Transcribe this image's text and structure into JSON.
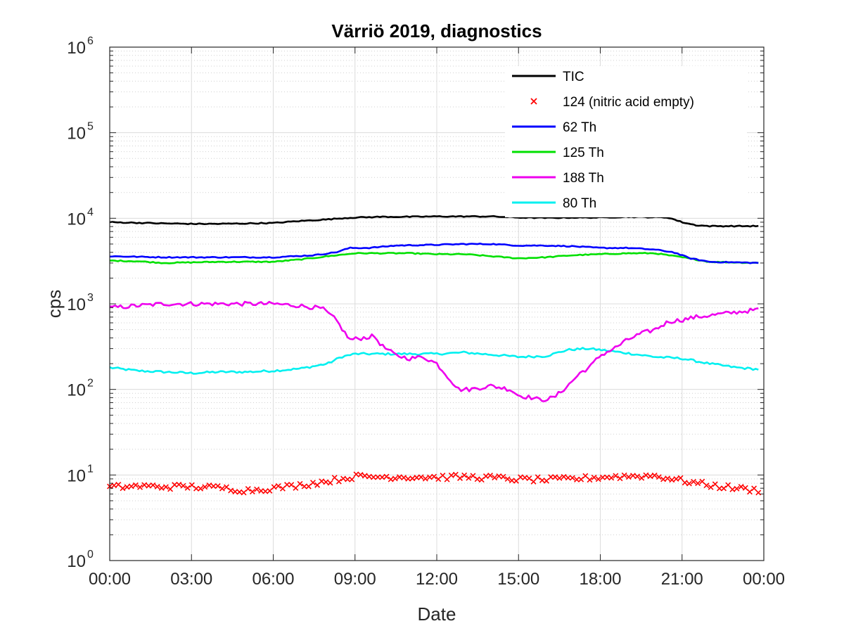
{
  "chart_data": {
    "type": "line",
    "title": "Värriö 2019, diagnostics",
    "xlabel": "Date",
    "ylabel": "cps",
    "yscale": "log",
    "ylim": [
      1,
      1000000
    ],
    "xlim_hours": [
      0,
      24
    ],
    "x_tick_labels": [
      "00:00",
      "03:00",
      "06:00",
      "09:00",
      "12:00",
      "15:00",
      "18:00",
      "21:00",
      "00:00"
    ],
    "y_tick_exponents": [
      "0",
      "1",
      "2",
      "3",
      "4",
      "5",
      "6"
    ],
    "y_tick_base": "10",
    "grid": true,
    "minor_grid": true,
    "legend_position": "top-right",
    "series": [
      {
        "name": "TIC",
        "color": "#000000",
        "style": "line",
        "points": [
          [
            0,
            9000
          ],
          [
            2,
            8700
          ],
          [
            3,
            8600
          ],
          [
            4,
            8600
          ],
          [
            6,
            8800
          ],
          [
            7,
            9300
          ],
          [
            8,
            9700
          ],
          [
            8.5,
            10000
          ],
          [
            9,
            10200
          ],
          [
            10,
            10400
          ],
          [
            11,
            10400
          ],
          [
            12,
            10500
          ],
          [
            13,
            10500
          ],
          [
            14,
            10500
          ],
          [
            15,
            10200
          ],
          [
            16,
            10100
          ],
          [
            17,
            10200
          ],
          [
            18,
            10200
          ],
          [
            19,
            10400
          ],
          [
            20,
            10300
          ],
          [
            20.5,
            10200
          ],
          [
            21,
            9000
          ],
          [
            21.5,
            8300
          ],
          [
            22,
            8100
          ],
          [
            24,
            8100
          ]
        ]
      },
      {
        "name": "124 (nitric acid empty)",
        "color": "#ff0000",
        "style": "marker-x",
        "points": [
          [
            0,
            7.2
          ],
          [
            1,
            7.4
          ],
          [
            2,
            7.3
          ],
          [
            3,
            7.3
          ],
          [
            4,
            7.1
          ],
          [
            5,
            6.6
          ],
          [
            6,
            7.0
          ],
          [
            7,
            7.6
          ],
          [
            8,
            8.5
          ],
          [
            9,
            9.6
          ],
          [
            10,
            9.5
          ],
          [
            11,
            9.5
          ],
          [
            12,
            9.4
          ],
          [
            13,
            9.5
          ],
          [
            14,
            9.3
          ],
          [
            15,
            8.9
          ],
          [
            16,
            8.8
          ],
          [
            17,
            9.0
          ],
          [
            18,
            9.4
          ],
          [
            19,
            9.7
          ],
          [
            20,
            9.8
          ],
          [
            21,
            8.6
          ],
          [
            22,
            7.6
          ],
          [
            23,
            7.0
          ],
          [
            24,
            6.5
          ]
        ]
      },
      {
        "name": "62 Th",
        "color": "#0000ff",
        "style": "line",
        "points": [
          [
            0,
            3600
          ],
          [
            2,
            3500
          ],
          [
            4,
            3500
          ],
          [
            6,
            3500
          ],
          [
            7.5,
            3700
          ],
          [
            8.3,
            4000
          ],
          [
            8.8,
            4500
          ],
          [
            9.5,
            4500
          ],
          [
            10.5,
            4800
          ],
          [
            12,
            4900
          ],
          [
            13,
            5000
          ],
          [
            14,
            5000
          ],
          [
            15,
            4800
          ],
          [
            16,
            4800
          ],
          [
            17,
            4700
          ],
          [
            18,
            4500
          ],
          [
            19,
            4500
          ],
          [
            20,
            4300
          ],
          [
            20.7,
            4000
          ],
          [
            21.3,
            3400
          ],
          [
            22,
            3100
          ],
          [
            24,
            3000
          ]
        ]
      },
      {
        "name": "125 Th",
        "color": "#00e000",
        "style": "line",
        "points": [
          [
            0,
            3200
          ],
          [
            1,
            3150
          ],
          [
            2,
            3000
          ],
          [
            3,
            3050
          ],
          [
            4,
            3100
          ],
          [
            6,
            3100
          ],
          [
            7,
            3300
          ],
          [
            8,
            3600
          ],
          [
            9,
            3900
          ],
          [
            10,
            3900
          ],
          [
            11,
            3900
          ],
          [
            12,
            3800
          ],
          [
            13,
            3800
          ],
          [
            14,
            3600
          ],
          [
            15,
            3400
          ],
          [
            16,
            3500
          ],
          [
            17,
            3700
          ],
          [
            18,
            3800
          ],
          [
            19,
            3900
          ],
          [
            20,
            3900
          ],
          [
            21,
            3500
          ],
          [
            22,
            3100
          ],
          [
            24,
            3000
          ]
        ]
      },
      {
        "name": "188 Th",
        "color": "#ee00ee",
        "style": "line",
        "points": [
          [
            0,
            900
          ],
          [
            1,
            950
          ],
          [
            2,
            1000
          ],
          [
            4,
            1000
          ],
          [
            6,
            1000
          ],
          [
            7,
            950
          ],
          [
            7.8,
            880
          ],
          [
            8.3,
            650
          ],
          [
            8.8,
            380
          ],
          [
            9.3,
            400
          ],
          [
            9.7,
            420
          ],
          [
            10,
            320
          ],
          [
            10.5,
            250
          ],
          [
            11,
            230
          ],
          [
            11.5,
            240
          ],
          [
            12,
            200
          ],
          [
            12.5,
            130
          ],
          [
            12.8,
            100
          ],
          [
            13.2,
            100
          ],
          [
            14,
            110
          ],
          [
            14.7,
            100
          ],
          [
            15,
            85
          ],
          [
            15.5,
            80
          ],
          [
            15.8,
            75
          ],
          [
            16.3,
            80
          ],
          [
            16.8,
            110
          ],
          [
            17.3,
            160
          ],
          [
            17.6,
            180
          ],
          [
            18,
            250
          ],
          [
            18.5,
            300
          ],
          [
            19,
            380
          ],
          [
            19.5,
            450
          ],
          [
            20,
            500
          ],
          [
            20.5,
            620
          ],
          [
            21,
            650
          ],
          [
            21.5,
            700
          ],
          [
            22,
            730
          ],
          [
            23,
            800
          ],
          [
            24,
            870
          ]
        ]
      },
      {
        "name": "80 Th",
        "color": "#00f0f0",
        "style": "line",
        "points": [
          [
            0,
            180
          ],
          [
            1,
            165
          ],
          [
            2,
            160
          ],
          [
            3,
            155
          ],
          [
            4,
            160
          ],
          [
            5,
            160
          ],
          [
            6,
            165
          ],
          [
            7,
            175
          ],
          [
            8,
            200
          ],
          [
            8.5,
            240
          ],
          [
            9,
            260
          ],
          [
            10,
            260
          ],
          [
            11,
            260
          ],
          [
            12,
            260
          ],
          [
            13,
            270
          ],
          [
            14,
            255
          ],
          [
            15,
            240
          ],
          [
            16,
            245
          ],
          [
            16.8,
            290
          ],
          [
            17.5,
            300
          ],
          [
            18,
            290
          ],
          [
            19,
            265
          ],
          [
            20,
            240
          ],
          [
            21,
            230
          ],
          [
            22,
            200
          ],
          [
            23,
            180
          ],
          [
            24,
            170
          ]
        ]
      }
    ]
  }
}
